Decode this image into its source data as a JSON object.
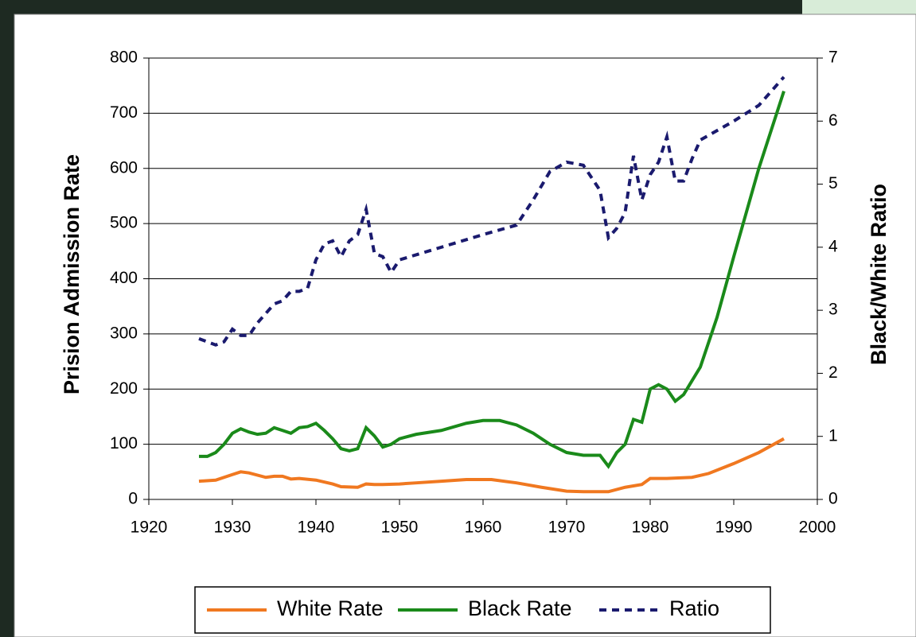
{
  "chart_data": {
    "type": "line",
    "y_label": "Prision Admission Rate",
    "y2_label": "Black/White Ratio",
    "xlim": [
      1920,
      2000
    ],
    "xticks": [
      1920,
      1930,
      1940,
      1950,
      1960,
      1970,
      1980,
      1990,
      2000
    ],
    "ylim": [
      0,
      800
    ],
    "yticks": [
      0,
      100,
      200,
      300,
      400,
      500,
      600,
      700,
      800
    ],
    "y2lim": [
      0,
      7
    ],
    "y2ticks": [
      0,
      1,
      2,
      3,
      4,
      5,
      6,
      7
    ],
    "grid": true,
    "legend": "bottom",
    "series": [
      {
        "name": "White Rate",
        "color": "#f07820",
        "dash": false,
        "x": [
          1926,
          1928,
          1930,
          1931,
          1932,
          1934,
          1935,
          1936,
          1937,
          1938,
          1940,
          1942,
          1943,
          1945,
          1946,
          1947,
          1948,
          1950,
          1952,
          1955,
          1958,
          1961,
          1964,
          1967,
          1970,
          1972,
          1975,
          1977,
          1979,
          1980,
          1982,
          1985,
          1987,
          1990,
          1993,
          1996
        ],
        "values": [
          33,
          35,
          45,
          50,
          48,
          40,
          42,
          42,
          37,
          38,
          35,
          28,
          23,
          22,
          28,
          27,
          27,
          28,
          30,
          33,
          36,
          36,
          30,
          22,
          15,
          14,
          14,
          22,
          27,
          38,
          38,
          40,
          47,
          65,
          85,
          110
        ]
      },
      {
        "name": "Black Rate",
        "color": "#1a8a1a",
        "dash": false,
        "x": [
          1926,
          1927,
          1928,
          1929,
          1930,
          1931,
          1932,
          1933,
          1934,
          1935,
          1936,
          1937,
          1938,
          1939,
          1940,
          1941,
          1942,
          1943,
          1944,
          1945,
          1946,
          1947,
          1948,
          1949,
          1950,
          1952,
          1955,
          1958,
          1960,
          1962,
          1964,
          1966,
          1968,
          1970,
          1972,
          1974,
          1975,
          1976,
          1977,
          1978,
          1979,
          1980,
          1981,
          1982,
          1983,
          1984,
          1985,
          1986,
          1988,
          1990,
          1993,
          1996
        ],
        "values": [
          78,
          78,
          85,
          100,
          120,
          128,
          122,
          118,
          120,
          130,
          125,
          120,
          130,
          132,
          138,
          125,
          110,
          92,
          88,
          92,
          130,
          115,
          95,
          100,
          110,
          118,
          125,
          138,
          143,
          143,
          135,
          120,
          100,
          85,
          80,
          80,
          60,
          85,
          100,
          145,
          140,
          200,
          208,
          200,
          178,
          190,
          215,
          240,
          330,
          440,
          600,
          740
        ]
      },
      {
        "name": "Ratio",
        "color": "#1a1a6e",
        "dash": true,
        "axis": "y2",
        "x": [
          1926,
          1927,
          1928,
          1929,
          1930,
          1931,
          1932,
          1933,
          1934,
          1935,
          1936,
          1937,
          1938,
          1939,
          1940,
          1941,
          1942,
          1943,
          1944,
          1945,
          1946,
          1947,
          1948,
          1949,
          1950,
          1955,
          1960,
          1964,
          1966,
          1968,
          1970,
          1972,
          1974,
          1975,
          1976,
          1977,
          1978,
          1979,
          1980,
          1981,
          1982,
          1983,
          1984,
          1985,
          1986,
          1990,
          1993,
          1996
        ],
        "values": [
          2.55,
          2.5,
          2.45,
          2.5,
          2.7,
          2.6,
          2.6,
          2.8,
          2.95,
          3.1,
          3.15,
          3.3,
          3.3,
          3.35,
          3.8,
          4.05,
          4.1,
          3.85,
          4.1,
          4.2,
          4.6,
          3.9,
          3.85,
          3.6,
          3.8,
          4.0,
          4.2,
          4.35,
          4.75,
          5.2,
          5.35,
          5.3,
          4.9,
          4.15,
          4.3,
          4.55,
          5.45,
          4.75,
          5.15,
          5.35,
          5.75,
          5.05,
          5.05,
          5.4,
          5.7,
          6.0,
          6.25,
          6.7
        ]
      }
    ]
  }
}
